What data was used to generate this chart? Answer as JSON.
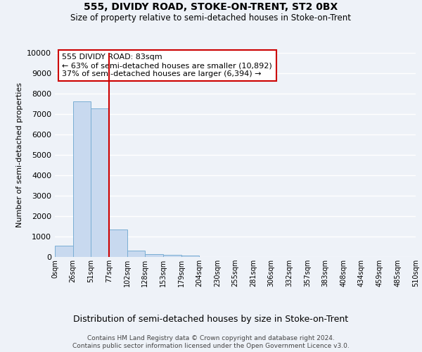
{
  "title1": "555, DIVIDY ROAD, STOKE-ON-TRENT, ST2 0BX",
  "title2": "Size of property relative to semi-detached houses in Stoke-on-Trent",
  "xlabel": "Distribution of semi-detached houses by size in Stoke-on-Trent",
  "ylabel": "Number of semi-detached properties",
  "bin_labels": [
    "0sqm",
    "26sqm",
    "51sqm",
    "77sqm",
    "102sqm",
    "128sqm",
    "153sqm",
    "179sqm",
    "204sqm",
    "230sqm",
    "255sqm",
    "281sqm",
    "306sqm",
    "332sqm",
    "357sqm",
    "383sqm",
    "408sqm",
    "434sqm",
    "459sqm",
    "485sqm",
    "510sqm"
  ],
  "bar_values": [
    550,
    7620,
    7270,
    1360,
    310,
    155,
    100,
    80,
    0,
    0,
    0,
    0,
    0,
    0,
    0,
    0,
    0,
    0,
    0,
    0
  ],
  "bar_color": "#c8d9ef",
  "bar_edge_color": "#7aaed4",
  "vline_x_bin": 2.5,
  "vline_color": "#cc0000",
  "annotation_text": "555 DIVIDY ROAD: 83sqm\n← 63% of semi-detached houses are smaller (10,892)\n37% of semi-detached houses are larger (6,394) →",
  "annotation_box_color": "white",
  "annotation_box_edge": "#cc0000",
  "ylim": [
    0,
    10000
  ],
  "yticks": [
    0,
    1000,
    2000,
    3000,
    4000,
    5000,
    6000,
    7000,
    8000,
    9000,
    10000
  ],
  "footer_line1": "Contains HM Land Registry data © Crown copyright and database right 2024.",
  "footer_line2": "Contains public sector information licensed under the Open Government Licence v3.0.",
  "background_color": "#eef2f8",
  "grid_color": "#ffffff"
}
